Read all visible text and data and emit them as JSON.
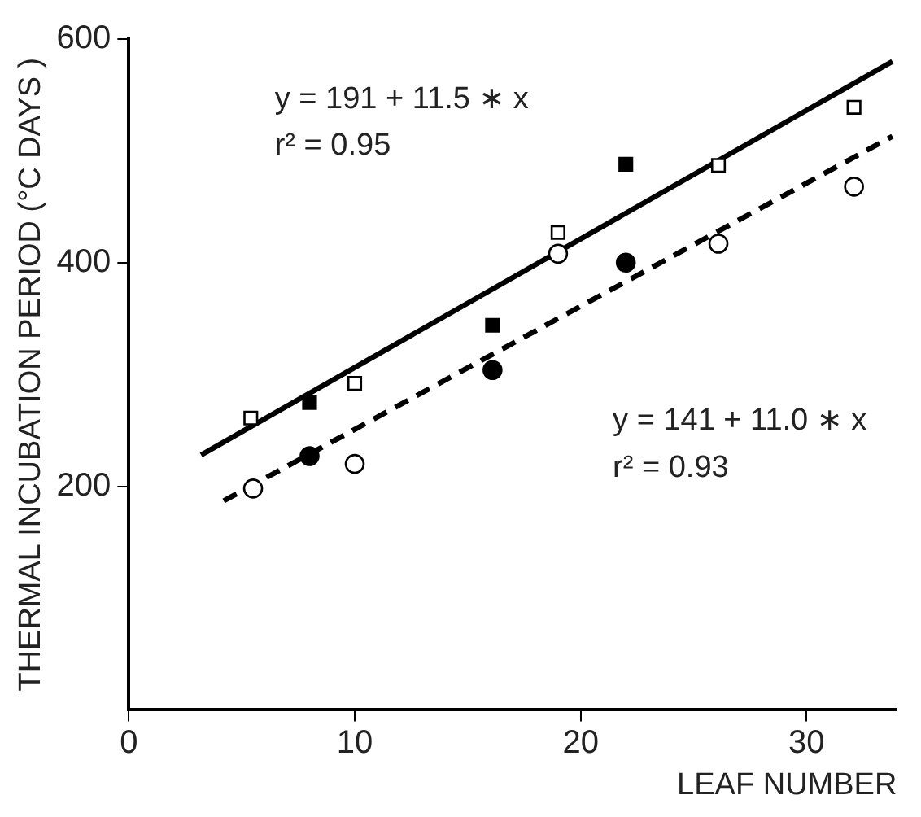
{
  "chart_data": {
    "type": "scatter",
    "xlabel": "LEAF NUMBER",
    "ylabel": "THERMAL INCUBATION PERIOD (°C DAYS )",
    "xlim": [
      0,
      34
    ],
    "xticks": [
      0,
      10,
      20,
      30
    ],
    "ylim": [
      0,
      600
    ],
    "yticks": [
      200,
      400,
      600
    ],
    "grid": false,
    "legend": false,
    "annotations": [
      "y = 191 + 11.5 ∗ x",
      "r² = 0.95",
      "y = 141 + 11.0 ∗ x",
      "r² = 0.93"
    ],
    "series": [
      {
        "marker": "square",
        "color": "#ffffff",
        "x": [
          5.4,
          10.0,
          19.0,
          26.1,
          32.1
        ],
        "values": [
          261,
          292,
          427,
          487,
          539
        ]
      },
      {
        "marker": "square",
        "color": "#000000",
        "x": [
          8.0,
          16.1,
          22.0
        ],
        "values": [
          275,
          344,
          488
        ]
      },
      {
        "marker": "circle",
        "color": "#000000",
        "x": [
          8.0,
          16.1,
          22.0
        ],
        "values": [
          227,
          304,
          400
        ]
      },
      {
        "marker": "circle",
        "color": "#ffffff",
        "x": [
          5.5,
          10.0,
          19.0,
          26.1,
          32.1
        ],
        "values": [
          198,
          220,
          408,
          417,
          468
        ]
      },
      {
        "type": "line",
        "marker": "none",
        "line_style": "solid",
        "color": "#000000",
        "x": [
          3.2,
          33.8
        ],
        "values": [
          228,
          580
        ]
      },
      {
        "type": "line",
        "marker": "none",
        "line_style": "dashed",
        "color": "#000000",
        "x": [
          4.2,
          33.8
        ],
        "values": [
          187,
          513
        ]
      }
    ]
  }
}
